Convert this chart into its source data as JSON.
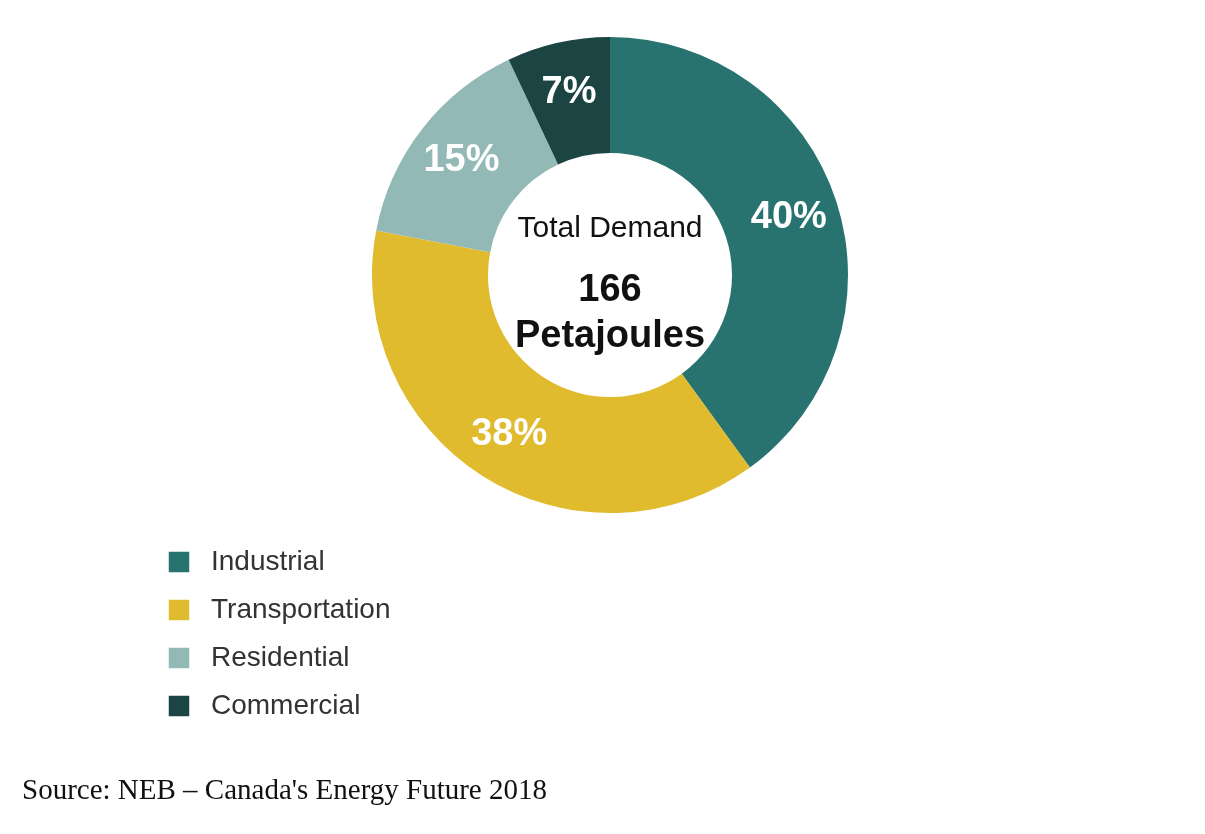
{
  "chart_data": {
    "type": "donut",
    "categories": [
      "Industrial",
      "Transportation",
      "Residential",
      "Commercial"
    ],
    "values": [
      40,
      38,
      15,
      7
    ],
    "colors": [
      "#287370",
      "#e0bb2e",
      "#93b9b6",
      "#1b4443"
    ],
    "value_labels": [
      "40%",
      "38%",
      "15%",
      "7%"
    ],
    "legend": "bottom left",
    "annotations": [
      "Total Demand",
      "166 Petajoules",
      "Source: NEB – Canada's Energy Future 2018"
    ]
  }
}
